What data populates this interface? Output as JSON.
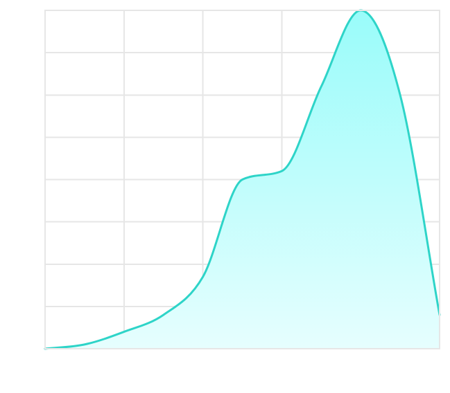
{
  "chart_data": {
    "type": "area",
    "title": "",
    "xlabel": "",
    "ylabel": "",
    "x": [
      0,
      1,
      2,
      3,
      4,
      5,
      6,
      7,
      8,
      9,
      10
    ],
    "series": [
      {
        "values": [
          0,
          1,
          4,
          8,
          17,
          40,
          42,
          62,
          80,
          60,
          8
        ]
      }
    ],
    "xlim": [
      0,
      10
    ],
    "ylim": [
      0,
      80
    ],
    "grid": true,
    "legend": "none",
    "colors": {
      "line": "#2ed4c8",
      "fill_top": "#99fcfa",
      "fill_bottom": "#e6fefe",
      "grid": "#e6e6e6"
    }
  }
}
